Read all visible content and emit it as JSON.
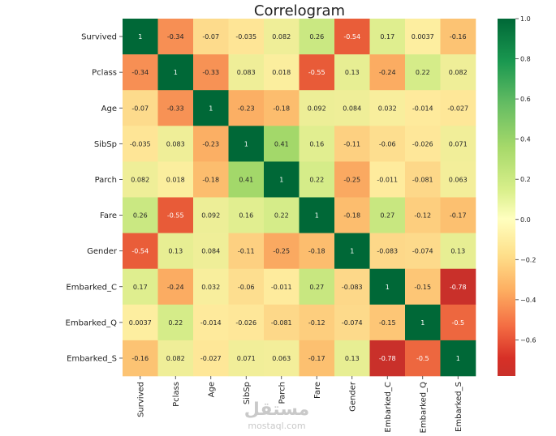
{
  "chart_data": {
    "type": "heatmap",
    "title": "Correlogram",
    "variables": [
      "Survived",
      "Pclass",
      "Age",
      "SibSp",
      "Parch",
      "Fare",
      "Gender",
      "Embarked_C",
      "Embarked_Q",
      "Embarked_S"
    ],
    "matrix": [
      [
        "1",
        "-0.34",
        "-0.07",
        "-0.035",
        "0.082",
        "0.26",
        "-0.54",
        "0.17",
        "0.0037",
        "-0.16"
      ],
      [
        "-0.34",
        "1",
        "-0.33",
        "0.083",
        "0.018",
        "-0.55",
        "0.13",
        "-0.24",
        "0.22",
        "0.082"
      ],
      [
        "-0.07",
        "-0.33",
        "1",
        "-0.23",
        "-0.18",
        "0.092",
        "0.084",
        "0.032",
        "-0.014",
        "-0.027"
      ],
      [
        "-0.035",
        "0.083",
        "-0.23",
        "1",
        "0.41",
        "0.16",
        "-0.11",
        "-0.06",
        "-0.026",
        "0.071"
      ],
      [
        "0.082",
        "0.018",
        "-0.18",
        "0.41",
        "1",
        "0.22",
        "-0.25",
        "-0.011",
        "-0.081",
        "0.063"
      ],
      [
        "0.26",
        "-0.55",
        "0.092",
        "0.16",
        "0.22",
        "1",
        "-0.18",
        "0.27",
        "-0.12",
        "-0.17"
      ],
      [
        "-0.54",
        "0.13",
        "0.084",
        "-0.11",
        "-0.25",
        "-0.18",
        "1",
        "-0.083",
        "-0.074",
        "0.13"
      ],
      [
        "0.17",
        "-0.24",
        "0.032",
        "-0.06",
        "-0.011",
        "0.27",
        "-0.083",
        "1",
        "-0.15",
        "-0.78"
      ],
      [
        "0.0037",
        "0.22",
        "-0.014",
        "-0.026",
        "-0.081",
        "-0.12",
        "-0.074",
        "-0.15",
        "1",
        "-0.5"
      ],
      [
        "-0.16",
        "0.082",
        "-0.027",
        "0.071",
        "0.063",
        "-0.17",
        "0.13",
        "-0.78",
        "-0.5",
        "1"
      ]
    ],
    "colormap": "RdYlGn",
    "colorbar": {
      "vmin": -0.78,
      "vmax": 1.0,
      "ticks": [
        1.0,
        0.8,
        0.6,
        0.4,
        0.2,
        0.0,
        -0.2,
        -0.4,
        -0.6
      ],
      "tick_labels": [
        "1.0",
        "0.8",
        "0.6",
        "0.4",
        "0.2",
        "0.0",
        "−0.2",
        "−0.4",
        "−0.6"
      ]
    }
  },
  "watermark": {
    "arabic": "مستقل",
    "latin": "mostaql.com"
  }
}
